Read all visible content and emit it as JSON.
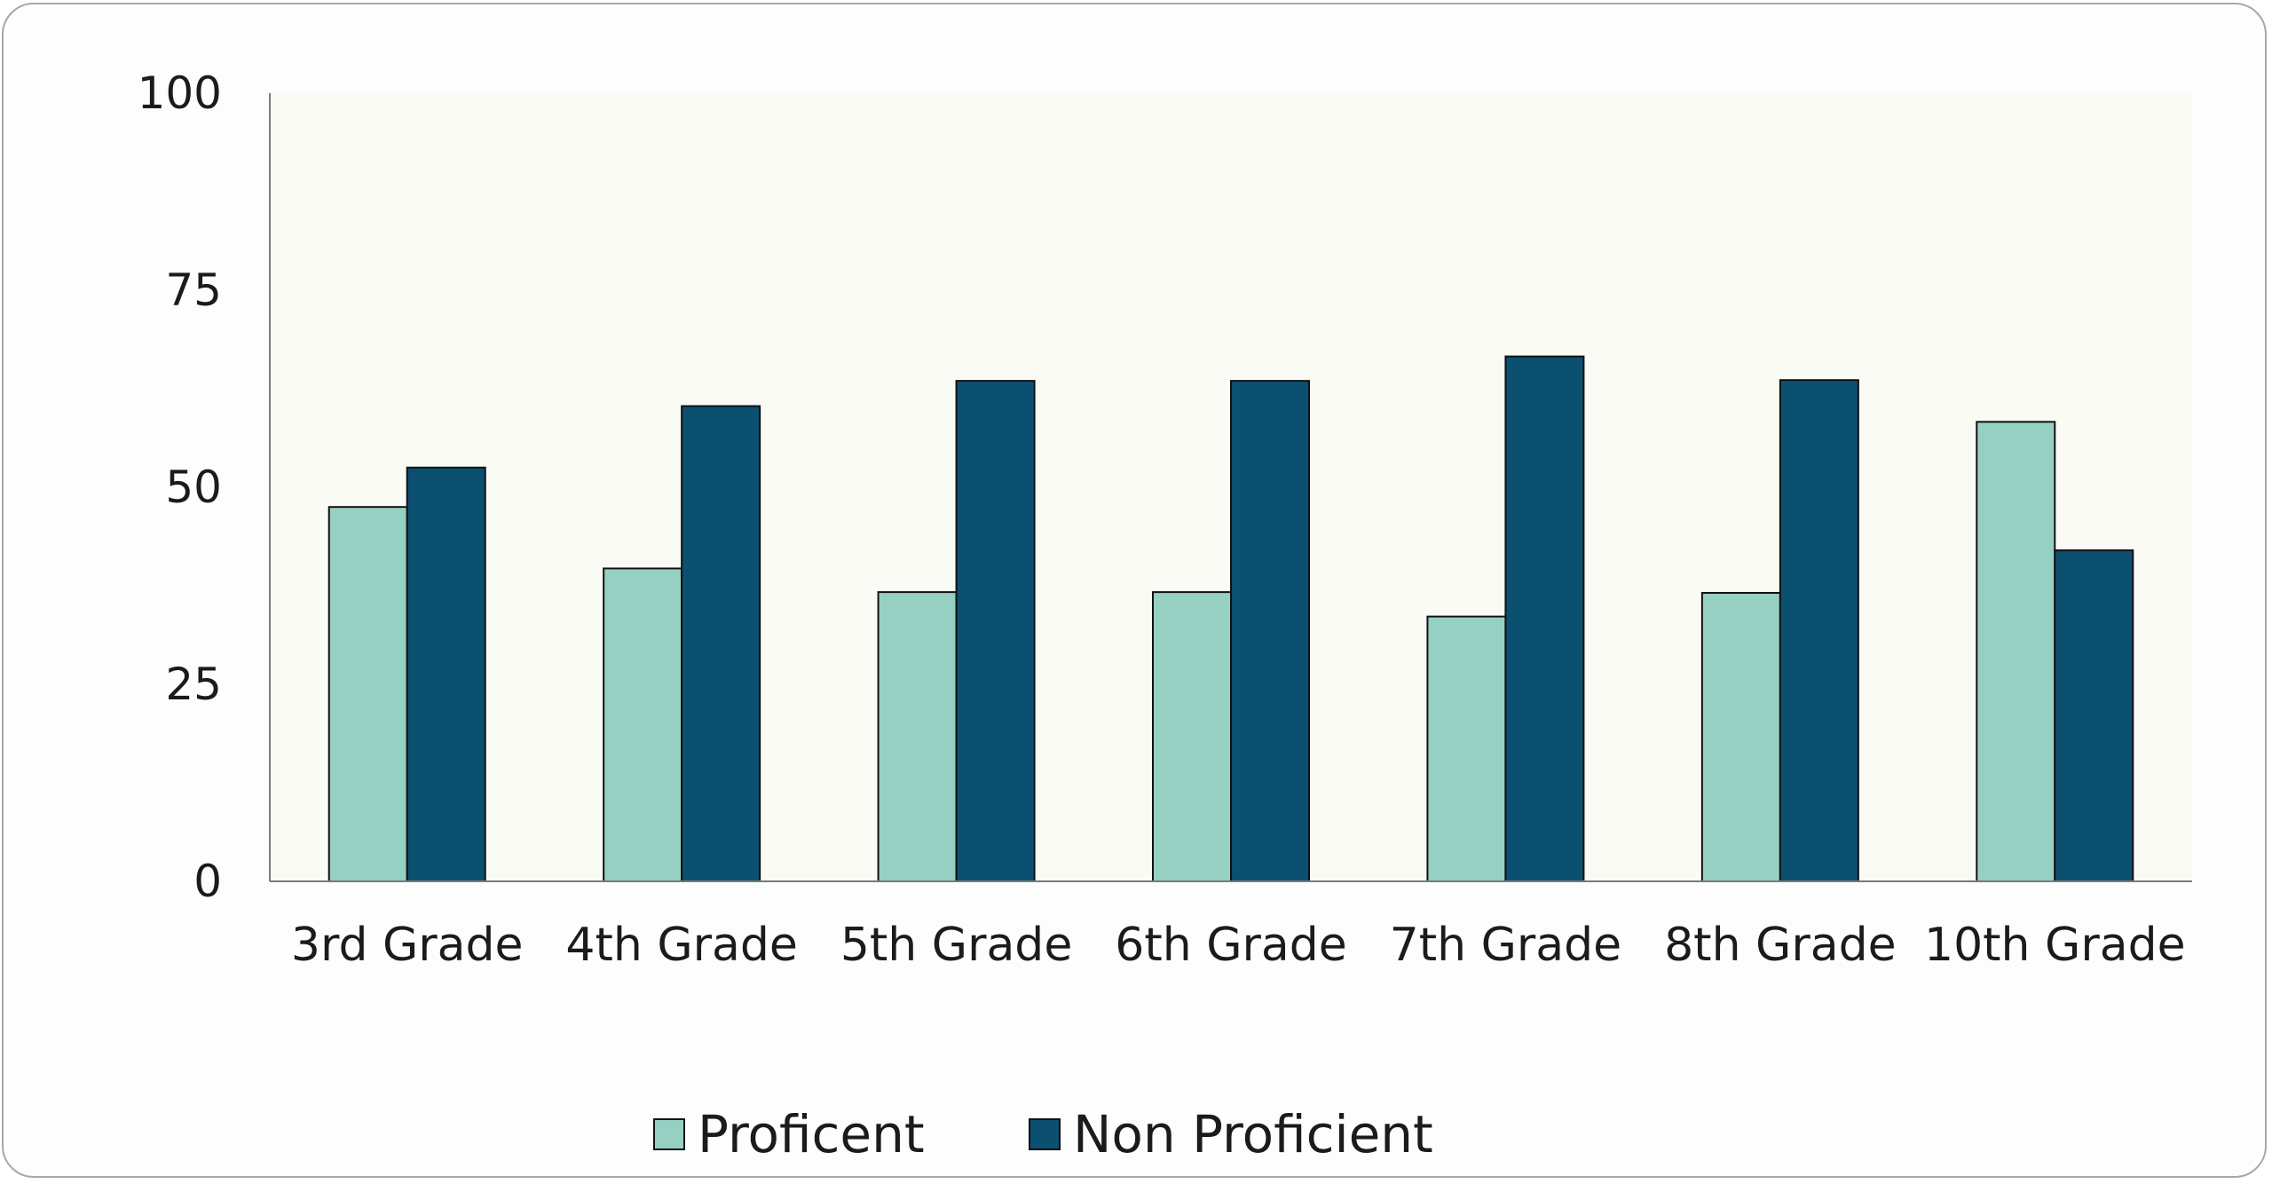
{
  "chart_data": {
    "type": "bar",
    "title": "",
    "xlabel": "",
    "ylabel": "",
    "ylim": [
      0,
      100
    ],
    "yticks": [
      0,
      25,
      50,
      75,
      100
    ],
    "categories": [
      "3rd Grade",
      "4th Grade",
      "5th Grade",
      "6th Grade",
      "7th Grade",
      "8th Grade",
      "10th Grade"
    ],
    "series": [
      {
        "name": "Proficent",
        "color": "#96d0c3",
        "values": [
          47.5,
          39.7,
          36.7,
          36.7,
          33.6,
          36.6,
          58.3
        ]
      },
      {
        "name": "Non Proficient",
        "color": "#0b5071",
        "values": [
          52.5,
          60.3,
          63.5,
          63.5,
          66.6,
          63.6,
          42.0
        ]
      }
    ],
    "plot_background": "#fbfbf5",
    "legend_position": "bottom",
    "grid": false
  }
}
